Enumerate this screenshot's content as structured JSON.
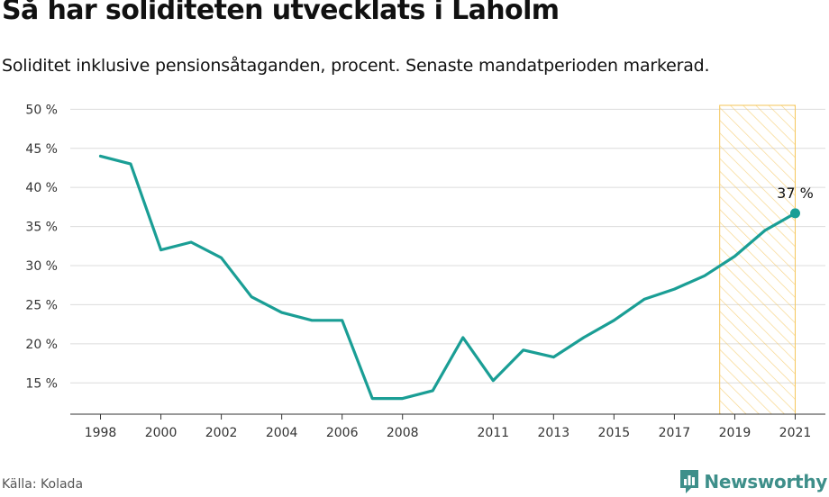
{
  "title": "Så har soliditeten utvecklats i Laholm",
  "subtitle": "Soliditet inklusive pensionsåtaganden, procent. Senaste mandatperioden markerad.",
  "source": "Källa: Kolada",
  "brand": {
    "name": "Newsworthy",
    "icon": "newsworthy-logo-icon",
    "color": "#3e8f8a"
  },
  "chart_data": {
    "type": "line",
    "title": "Så har soliditeten utvecklats i Laholm",
    "subtitle": "Soliditet inklusive pensionsåtaganden, procent. Senaste mandatperioden markerad.",
    "xlabel": "",
    "ylabel": "",
    "ylim": [
      11,
      50.5
    ],
    "xlim": [
      1997,
      2022
    ],
    "grid": true,
    "line_color": "#1a9e95",
    "highlight_color": "#f5c65a",
    "y_ticks": [
      15,
      20,
      25,
      30,
      35,
      40,
      45,
      50
    ],
    "y_tick_labels": [
      "15 %",
      "20 %",
      "25 %",
      "30 %",
      "35 %",
      "40 %",
      "45 %",
      "50 %"
    ],
    "x_ticks": [
      1998,
      2000,
      2002,
      2004,
      2006,
      2008,
      2011,
      2013,
      2015,
      2017,
      2019,
      2021
    ],
    "x_tick_labels": [
      "1998",
      "2000",
      "2002",
      "2004",
      "2006",
      "2008",
      "2011",
      "2013",
      "2015",
      "2017",
      "2019",
      "2021"
    ],
    "highlight_range": [
      2018.5,
      2021
    ],
    "x": [
      1998,
      1999,
      2000,
      2001,
      2002,
      2003,
      2004,
      2005,
      2006,
      2007,
      2008,
      2009,
      2010,
      2011,
      2012,
      2013,
      2014,
      2015,
      2016,
      2017,
      2018,
      2019,
      2020,
      2021
    ],
    "values": [
      44,
      43,
      32,
      33,
      31,
      26,
      24,
      23,
      23,
      13,
      13,
      14,
      20.8,
      15.3,
      19.2,
      18.3,
      20.8,
      23,
      25.7,
      27,
      28.7,
      31.2,
      34.5,
      36.7
    ],
    "annotation": {
      "x": 2021,
      "y": 36.7,
      "label": "37 %"
    }
  }
}
